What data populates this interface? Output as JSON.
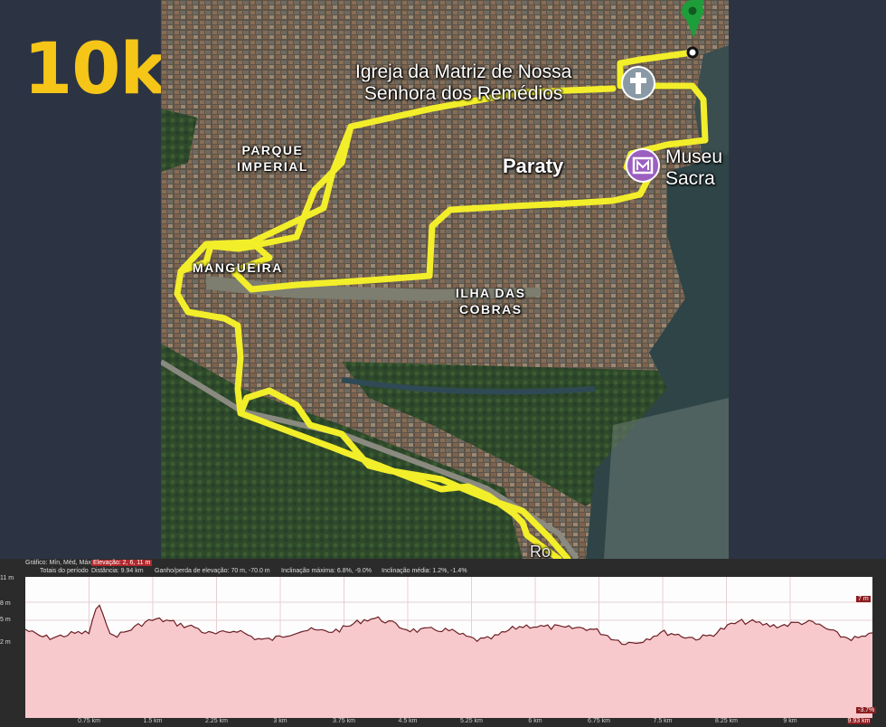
{
  "title": "10k",
  "map": {
    "labels": {
      "parque_imperial_line1": "PARQUE",
      "parque_imperial_line2": "IMPERIAL",
      "mangueira": "MANGUEIRA",
      "ilha_line1": "ILHA DAS",
      "ilha_line2": "COBRAS",
      "paraty": "Paraty",
      "igreja_line1": "Igreja da Matriz de Nossa",
      "igreja_line2": "Senhora dos Remédios",
      "museu_line1": "Museu",
      "museu_line2": "Sacra",
      "road": "Ro"
    },
    "route_color": "#f2ee2a",
    "marker_color": "#1e9e3a",
    "church_icon": "cross-icon",
    "museum_icon": "museum-icon"
  },
  "elevation": {
    "stats": {
      "grafico": "Gráfico: Mín, Méd, Máx",
      "elevacao": "Elevação: 2, 6, 11 m",
      "totais": "Totais do período",
      "distancia": "Distância: 9.94 km",
      "ganho": "Ganho/perda de elevação: 70 m, -70.0 m",
      "inc_max": "Inclinação máxima: 6.8%, -9.0%",
      "inc_media": "Inclinação média: 1.2%, -1.4%"
    },
    "y_labels": [
      "11 m",
      "8 m",
      "5 m",
      "2 m"
    ],
    "current_value": "7 m",
    "current_slope": "-3.7%",
    "end_distance": "9.93 km",
    "x_labels": [
      "0.75 km",
      "1.5 km",
      "2.25 km",
      "3 km",
      "3.75 km",
      "4.5 km",
      "5.25 km",
      "6 km",
      "6.75 km",
      "7.5 km",
      "8.25 km",
      "9 km"
    ],
    "fill_color": "#f8c9cc",
    "line_color": "#6b1f24"
  }
}
